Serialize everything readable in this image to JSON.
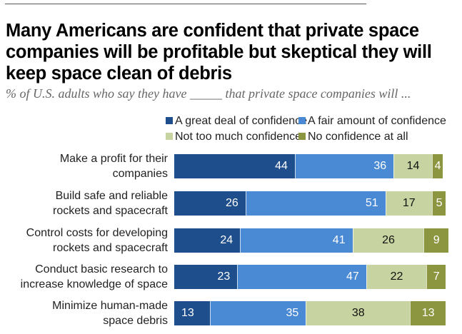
{
  "chart_data": {
    "type": "bar",
    "orientation": "horizontal",
    "stacked": true,
    "title": "Many Americans are confident that private space companies will be profitable but skeptical they will keep space clean of debris",
    "subtitle": "% of U.S. adults who say they have _____ that private space companies will ...",
    "xlabel": "",
    "ylabel": "",
    "xlim": [
      0,
      100
    ],
    "grid": false,
    "legend_position": "top",
    "categories": [
      "Make a profit for their companies",
      "Build safe and reliable rockets and spacecraft",
      "Control costs for developing rockets and spacecraft",
      "Conduct basic research to increase knowledge of space",
      "Minimize human-made space debris"
    ],
    "category_lines": [
      [
        "Make a profit for their",
        "companies"
      ],
      [
        "Build safe and reliable",
        "rockets and spacecraft"
      ],
      [
        "Control costs for developing",
        "rockets and spacecraft"
      ],
      [
        "Conduct basic research to",
        "increase knowledge of space"
      ],
      [
        "Minimize human-made",
        "space debris"
      ]
    ],
    "series": [
      {
        "name": "A great deal of confidence",
        "color": "#1f4e8c",
        "label_color": "#ffffff",
        "values": [
          44,
          26,
          24,
          23,
          13
        ]
      },
      {
        "name": "A fair amount of confidence",
        "color": "#4a8ad4",
        "label_color": "#ffffff",
        "values": [
          36,
          51,
          41,
          47,
          35
        ]
      },
      {
        "name": "Not too much confidence",
        "color": "#c7d3a0",
        "label_color": "#111111",
        "values": [
          14,
          17,
          26,
          22,
          38
        ]
      },
      {
        "name": "No confidence at all",
        "color": "#8c9640",
        "label_color": "#ffffff",
        "values": [
          4,
          5,
          9,
          7,
          13
        ]
      }
    ]
  }
}
